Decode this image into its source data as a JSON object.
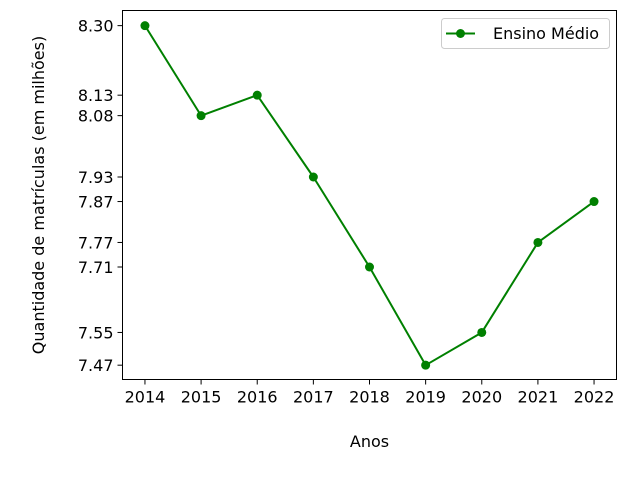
{
  "chart_data": {
    "type": "line",
    "title": "",
    "xlabel": "Anos",
    "ylabel": "Quantidade de matrículas (em milhões)",
    "x": [
      2014,
      2015,
      2016,
      2017,
      2018,
      2019,
      2020,
      2021,
      2022
    ],
    "x_tick_labels": [
      "2014",
      "2015",
      "2016",
      "2017",
      "2018",
      "2019",
      "2020",
      "2021",
      "2022"
    ],
    "y_ticks": [
      8.3,
      8.13,
      8.08,
      7.93,
      7.87,
      7.77,
      7.71,
      7.55,
      7.47
    ],
    "y_tick_labels": [
      "8.30",
      "8.13",
      "8.08",
      "7.93",
      "7.87",
      "7.77",
      "7.71",
      "7.55",
      "7.47"
    ],
    "ylim": [
      7.435,
      8.337
    ],
    "xlim": [
      2013.6,
      2022.4
    ],
    "grid": false,
    "legend_position": "upper right",
    "series": [
      {
        "name": "Ensino Médio",
        "color": "#008000",
        "marker": "circle",
        "values": [
          8.3,
          8.08,
          8.13,
          7.93,
          7.71,
          7.47,
          7.55,
          7.77,
          7.87
        ]
      }
    ]
  }
}
